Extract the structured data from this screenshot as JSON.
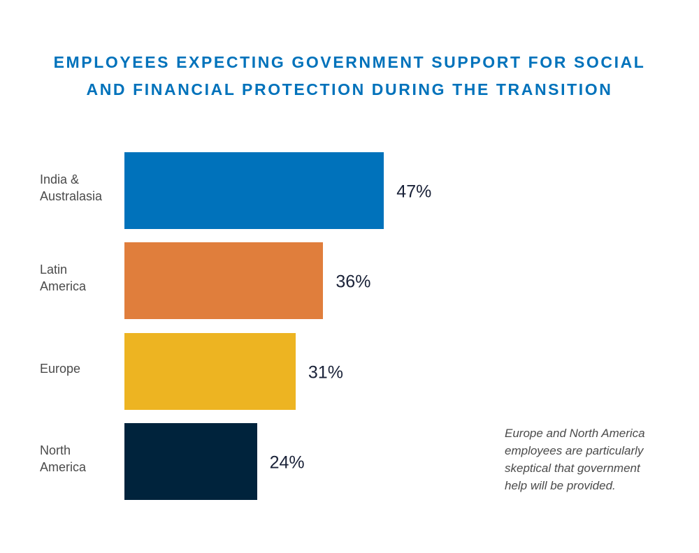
{
  "chart_data": {
    "type": "bar",
    "orientation": "horizontal",
    "title": "EMPLOYEES EXPECTING GOVERNMENT SUPPORT FOR SOCIAL\nAND FINANCIAL PROTECTION DURING THE TRANSITION",
    "categories": [
      "India &\nAustralasia",
      "Latin\nAmerica",
      "Europe",
      "North\nAmerica"
    ],
    "values": [
      47,
      36,
      31,
      24
    ],
    "value_labels": [
      "47%",
      "36%",
      "31%",
      "24%"
    ],
    "colors": [
      "#0072bb",
      "#e07e3c",
      "#edb422",
      "#00233c"
    ],
    "annotation": "Europe and North America\nemployees are particularly\nskeptical that government\nhelp will be provided."
  }
}
